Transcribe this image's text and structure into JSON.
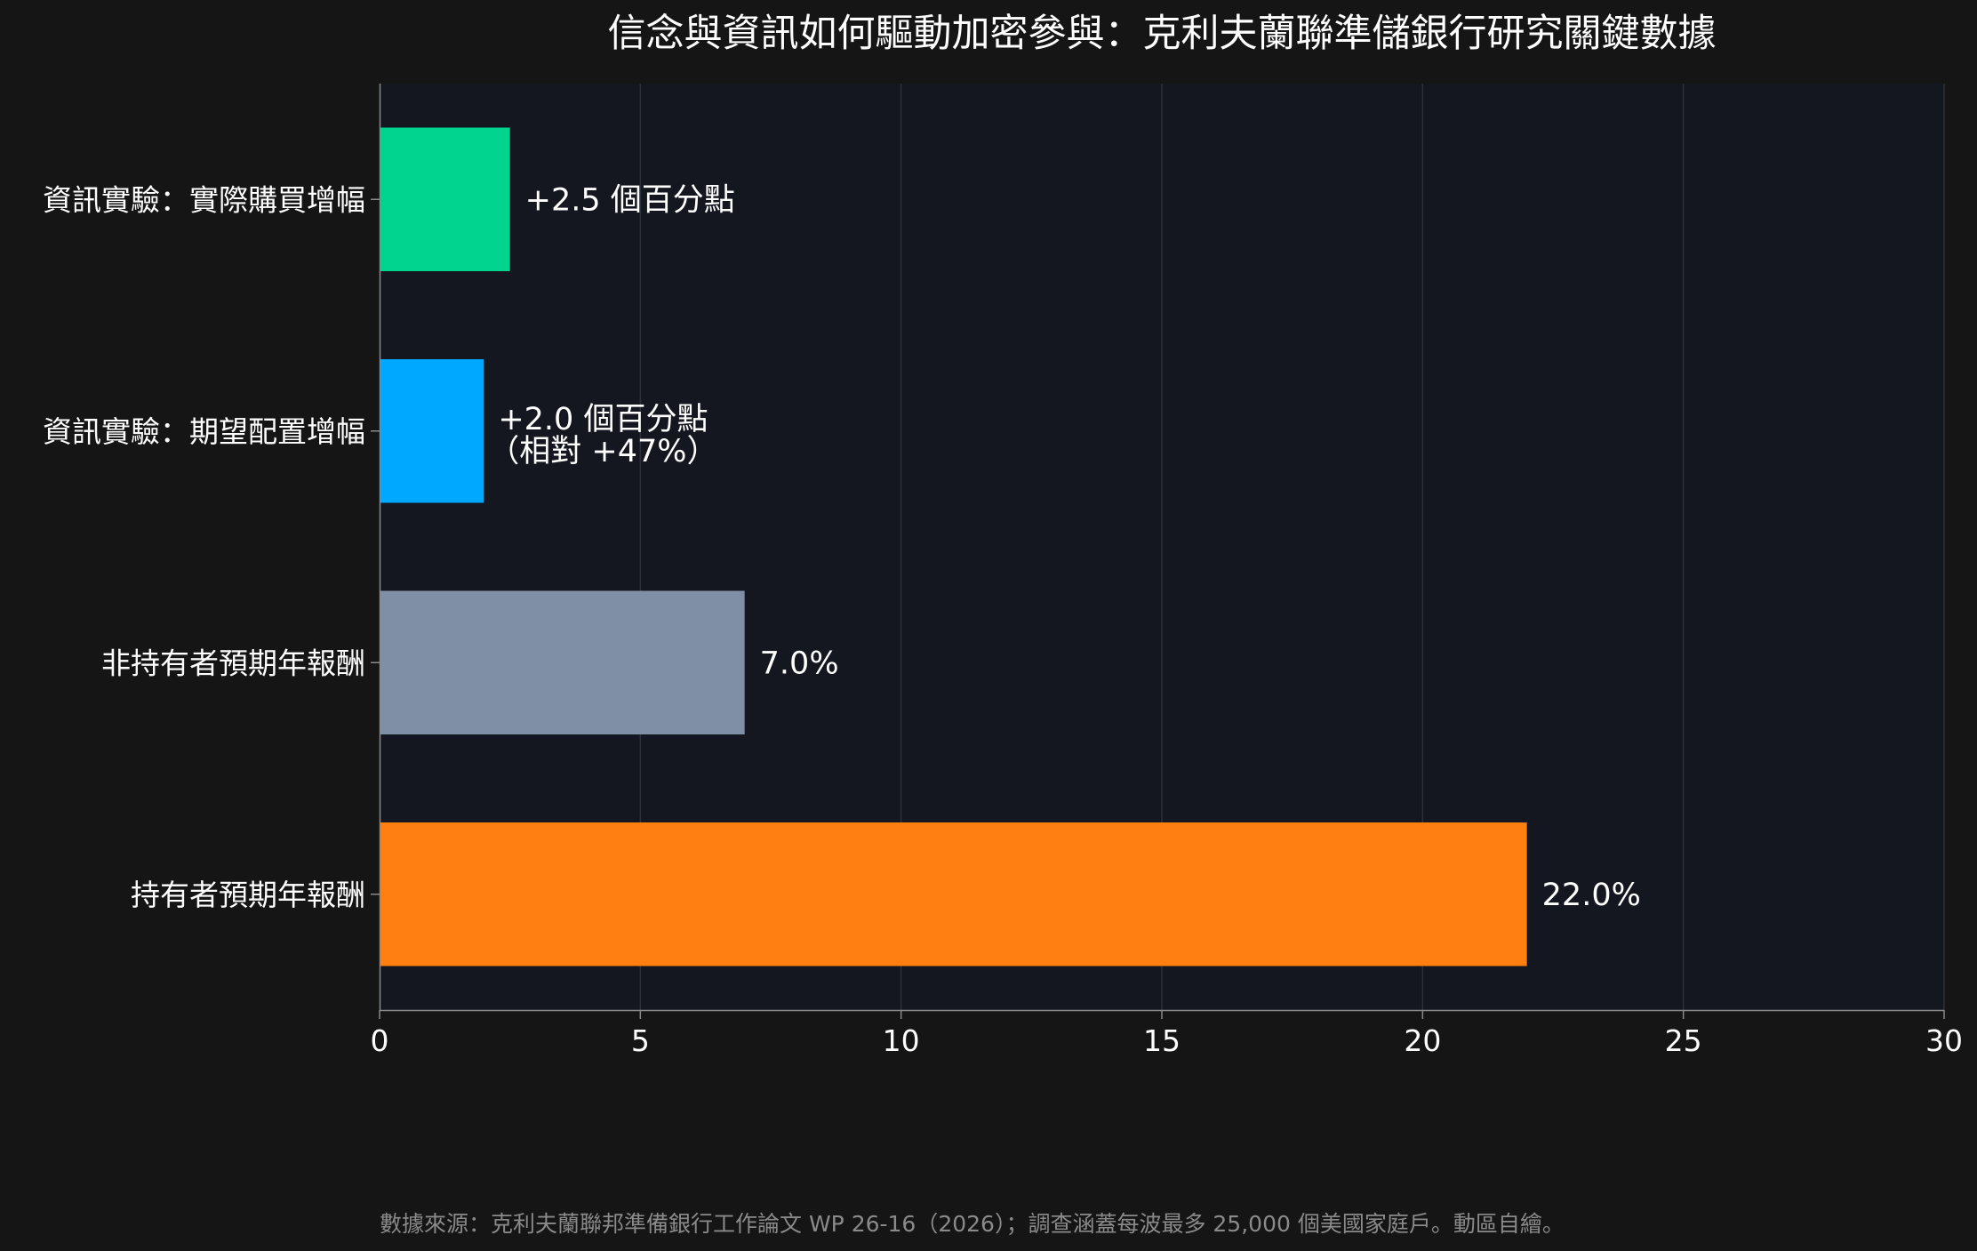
{
  "chart_data": {
    "type": "bar",
    "orientation": "horizontal",
    "title": "信念與資訊如何驅動加密參與：克利夫蘭聯準儲銀行研究關鍵數據",
    "xlabel": "",
    "ylabel": "",
    "xlim": [
      0,
      30
    ],
    "x_ticks": [
      "0",
      "5",
      "10",
      "15",
      "20",
      "25",
      "30"
    ],
    "grid": "vertical",
    "legend": "none",
    "categories": [
      "資訊實驗：實際購買增幅",
      "資訊實驗：期望配置增幅",
      "非持有者預期年報酬",
      "持有者預期年報酬"
    ],
    "values": [
      2.5,
      2.0,
      7.0,
      22.0
    ],
    "value_labels": [
      [
        "+2.5 個百分點"
      ],
      [
        "+2.0 個百分點",
        "（相對 +47%）"
      ],
      [
        "7.0%"
      ],
      [
        "22.0%"
      ]
    ],
    "colors": [
      "#00d48f",
      "#00a8ff",
      "#7f8fa6",
      "#ff7f11"
    ],
    "plot_background": "#141720",
    "source": "數據來源：克利夫蘭聯邦準備銀行工作論文 WP 26-16（2026）；調查涵蓋每波最多 25,000 個美國家庭戶。動區自繪。"
  }
}
